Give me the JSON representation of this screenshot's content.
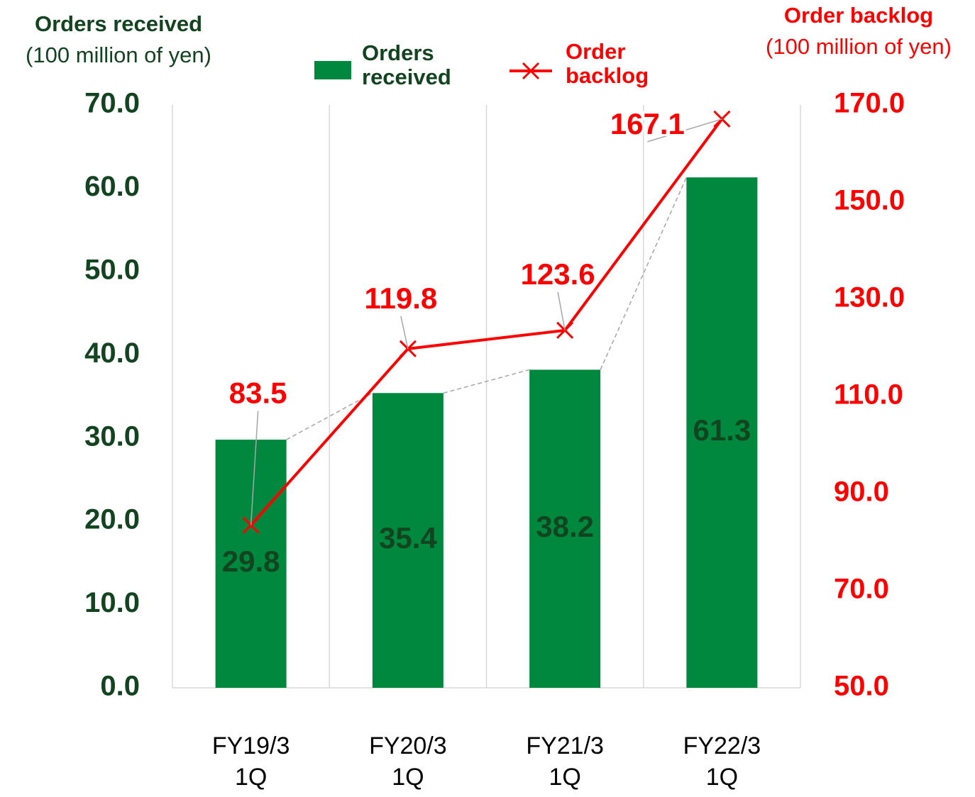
{
  "chart_data": {
    "type": "combo",
    "left_axis_title": "Orders received",
    "left_axis_unit": "(100 million of yen)",
    "right_axis_title": "Order backlog",
    "right_axis_unit": "(100 million of yen)",
    "categories": [
      "FY19/3 1Q",
      "FY20/3 1Q",
      "FY21/3 1Q",
      "FY22/3 1Q"
    ],
    "series": [
      {
        "name": "Orders received",
        "type": "bar",
        "color": "#00893e",
        "values": [
          29.8,
          35.4,
          38.2,
          61.3
        ]
      },
      {
        "name": "Order backlog",
        "type": "line",
        "axis": "y2",
        "color": "#ff0000",
        "values": [
          83.5,
          119.8,
          123.6,
          167.1
        ]
      }
    ],
    "ylim": [
      0,
      70
    ],
    "yticks": [
      {
        "value": 0,
        "label": "0.0"
      },
      {
        "value": 10,
        "label": "10.0"
      },
      {
        "value": 20,
        "label": "20.0"
      },
      {
        "value": 30,
        "label": "30.0"
      },
      {
        "value": 40,
        "label": "40.0"
      },
      {
        "value": 50,
        "label": "50.0"
      },
      {
        "value": 60,
        "label": "60.0"
      },
      {
        "value": 70,
        "label": "70.0"
      }
    ],
    "y2lim": [
      50,
      170
    ],
    "y2ticks": [
      {
        "value": 50,
        "label": "50.0"
      },
      {
        "value": 70,
        "label": "70.0"
      },
      {
        "value": 90,
        "label": "90.0"
      },
      {
        "value": 110,
        "label": "110.0"
      },
      {
        "value": 130,
        "label": "130.0"
      },
      {
        "value": 150,
        "label": "150.0"
      },
      {
        "value": 170,
        "label": "170.0"
      }
    ],
    "grid": true
  }
}
